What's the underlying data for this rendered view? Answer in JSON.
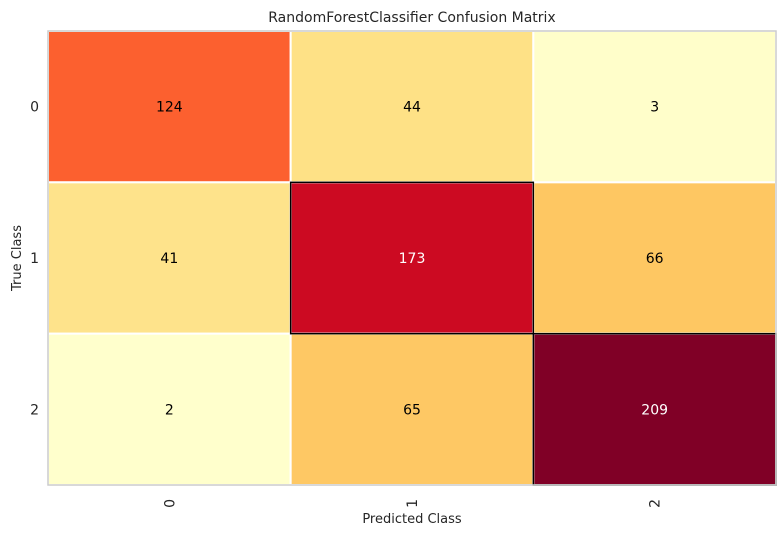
{
  "chart_data": {
    "type": "heatmap",
    "title": "RandomForestClassifier Confusion Matrix",
    "xlabel": "Predicted Class",
    "ylabel": "True Class",
    "x_categories": [
      "0",
      "1",
      "2"
    ],
    "y_categories": [
      "0",
      "1",
      "2"
    ],
    "values": [
      [
        124,
        44,
        3
      ],
      [
        41,
        173,
        66
      ],
      [
        2,
        65,
        209
      ]
    ],
    "colormap": "YlOrRd",
    "diagonal_outline": true,
    "grid": false,
    "legend": "none"
  }
}
